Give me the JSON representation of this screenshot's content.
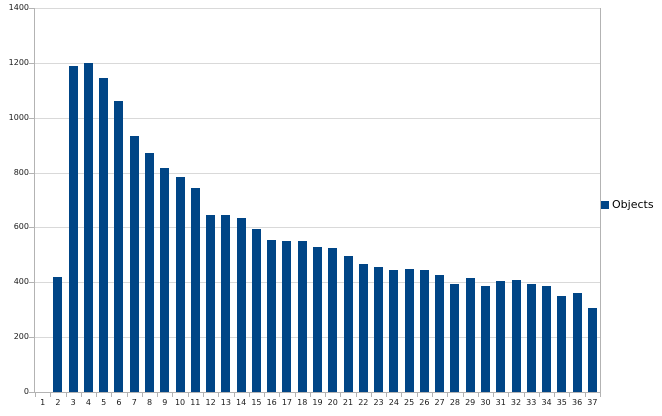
{
  "chart_data": {
    "type": "bar",
    "title": "",
    "xlabel": "",
    "ylabel": "",
    "categories": [
      "1",
      "2",
      "3",
      "4",
      "5",
      "6",
      "7",
      "8",
      "9",
      "10",
      "11",
      "12",
      "13",
      "14",
      "15",
      "16",
      "17",
      "18",
      "19",
      "20",
      "21",
      "22",
      "23",
      "24",
      "25",
      "26",
      "27",
      "28",
      "29",
      "30",
      "31",
      "32",
      "33",
      "34",
      "35",
      "36",
      "37"
    ],
    "series": [
      {
        "name": "Objects",
        "color": "#004586",
        "values": [
          0,
          420,
          1190,
          1200,
          1145,
          1060,
          935,
          870,
          815,
          785,
          745,
          645,
          645,
          635,
          595,
          555,
          550,
          550,
          530,
          525,
          495,
          465,
          455,
          445,
          450,
          445,
          425,
          395,
          415,
          385,
          405,
          410,
          395,
          385,
          350,
          360,
          305
        ]
      }
    ],
    "ylim": [
      0,
      1400
    ],
    "yticks": [
      0,
      200,
      400,
      600,
      800,
      1000,
      1200,
      1400
    ],
    "grid": true,
    "legend_position": "right",
    "colors": {
      "bar": "#004586",
      "gridline": "#d9d9d9",
      "axis": "#b3b3b3",
      "label": "#1a1a1a",
      "background": "#ffffff"
    }
  },
  "legend": {
    "label": "Objects"
  }
}
